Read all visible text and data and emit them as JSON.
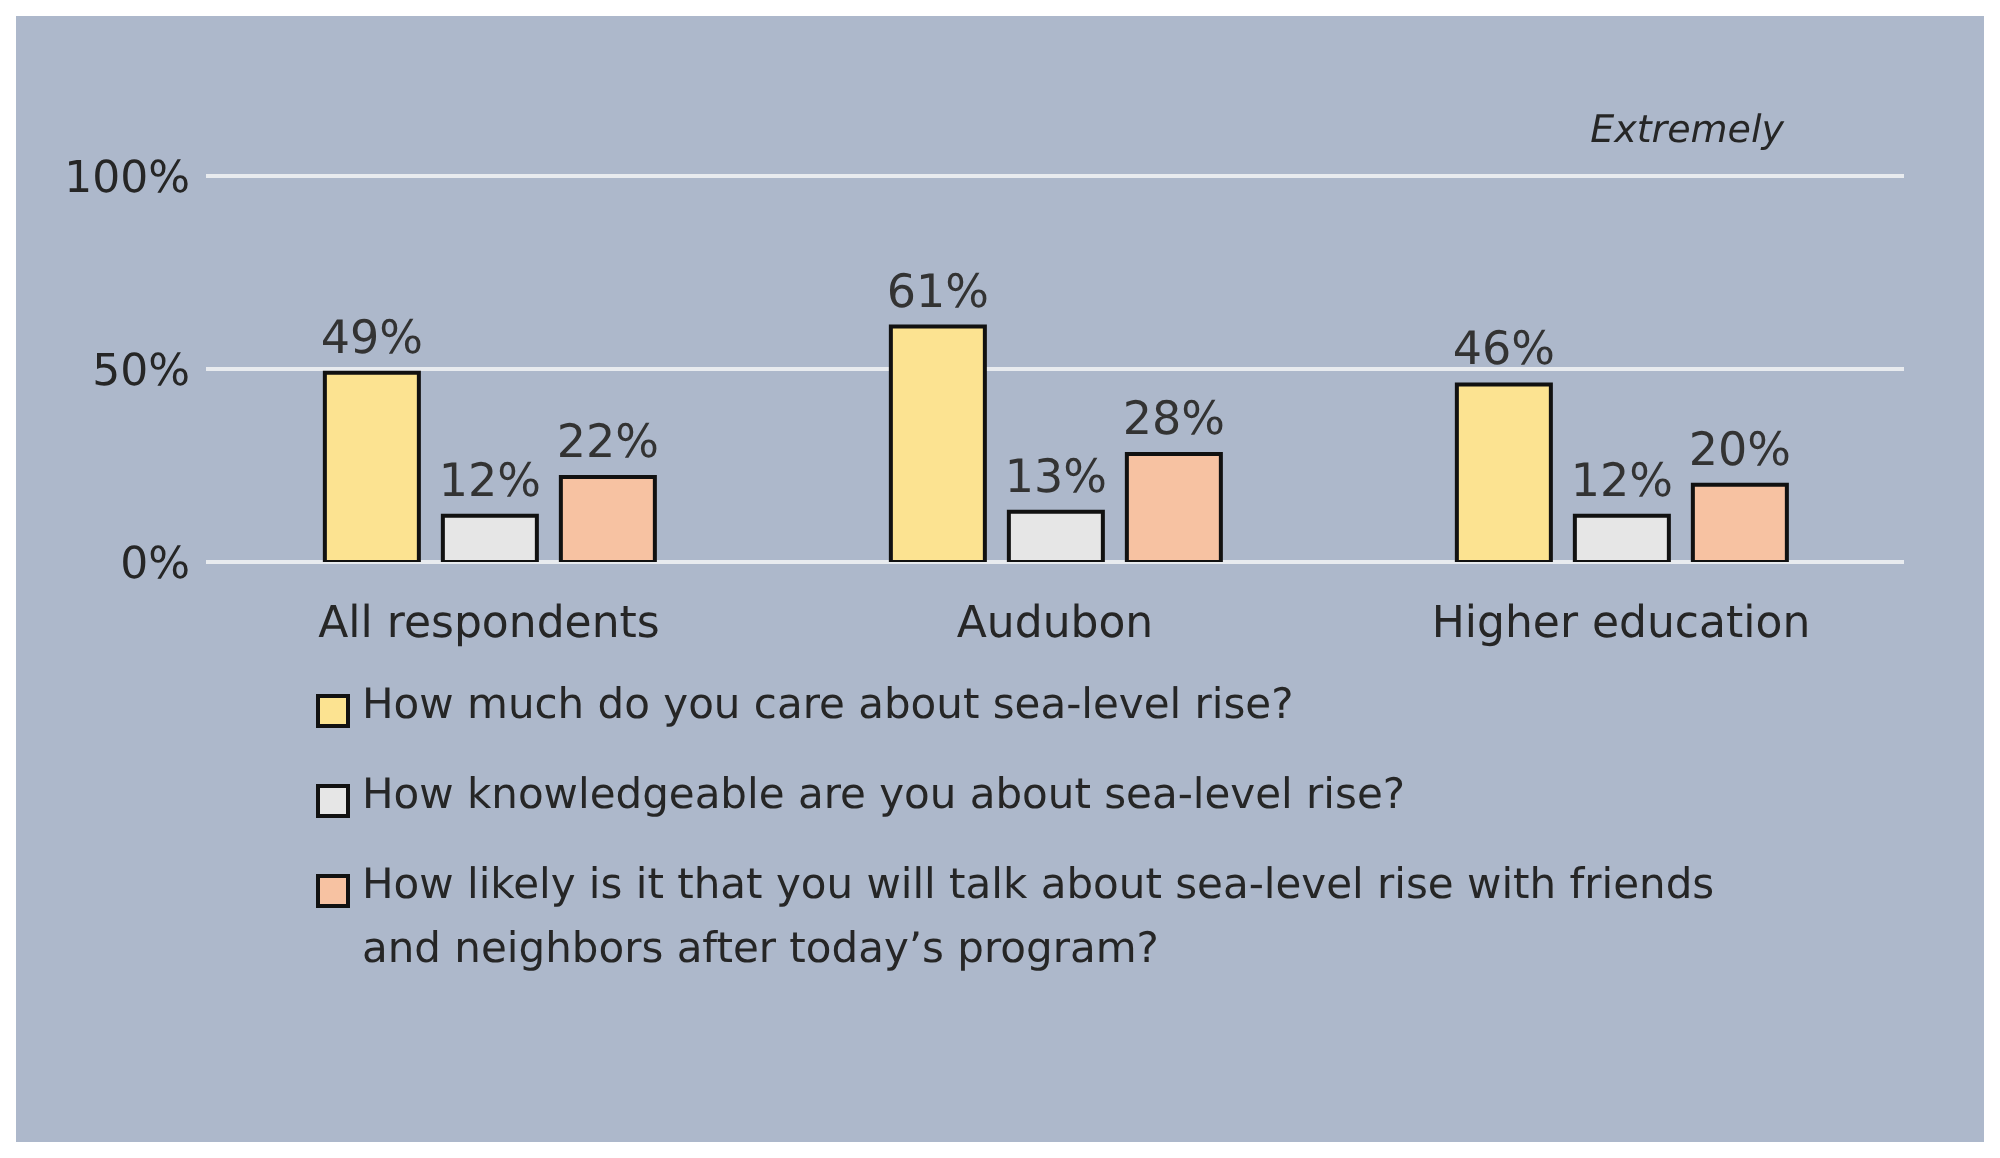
{
  "chart_data": {
    "type": "bar",
    "categories": [
      "All respondents",
      "Audubon",
      "Higher education"
    ],
    "series": [
      {
        "name": "How much do you care about sea-level rise?",
        "color": "#fce391",
        "values": [
          49,
          61,
          46
        ],
        "value_labels": [
          "49%",
          "61%",
          "46%"
        ]
      },
      {
        "name": "How knowledgeable are you about sea-level rise?",
        "color": "#e6e6e6",
        "values": [
          12,
          13,
          12
        ],
        "value_labels": [
          "12%",
          "13%",
          "12%"
        ]
      },
      {
        "name": "How likely is it that you will talk about sea-level rise with friends and neighbors after today’s program?",
        "color": "#f7c2a2",
        "values": [
          22,
          28,
          20
        ],
        "value_labels": [
          "22%",
          "28%",
          "20%"
        ]
      }
    ],
    "ylim": [
      0,
      100
    ],
    "yticks": [
      {
        "value": 0,
        "label": "0%"
      },
      {
        "value": 50,
        "label": "50%"
      },
      {
        "value": 100,
        "label": "100%"
      }
    ],
    "grid": "y",
    "legend": "bottom",
    "annotations": [
      "Extremely"
    ]
  }
}
